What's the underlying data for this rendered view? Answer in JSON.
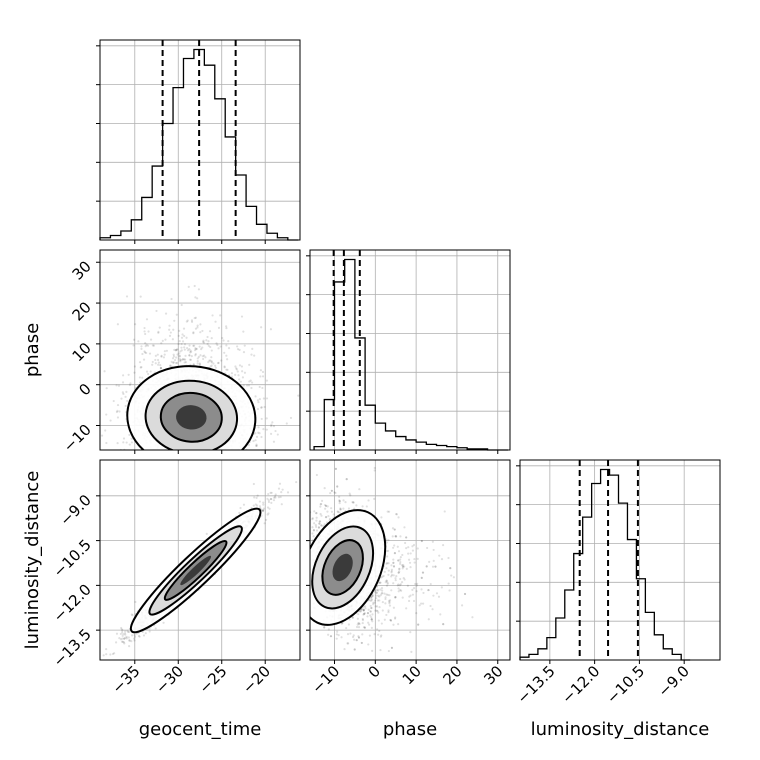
{
  "chart_data": {
    "type": "corner",
    "parameters": [
      "geocent_time",
      "phase",
      "luminosity_distance"
    ],
    "axes": {
      "geocent_time": {
        "range": [
          -39,
          -16
        ],
        "ticks": [
          -35,
          -30,
          -25,
          -20
        ],
        "tick_labels": [
          "−35",
          "−30",
          "−25",
          "−20"
        ]
      },
      "phase": {
        "range": [
          -16,
          33
        ],
        "ticks": [
          -10,
          0,
          10,
          20,
          30
        ],
        "tick_labels": [
          "−10",
          "0",
          "10",
          "20",
          "30"
        ]
      },
      "luminosity_distance": {
        "range": [
          -14.5,
          -7.8
        ],
        "ticks": [
          -13.5,
          -12.0,
          -10.5,
          -9.0
        ],
        "tick_labels": [
          "−13.5",
          "−12.0",
          "−10.5",
          "−9.0"
        ]
      }
    },
    "xlabels": [
      "geocent_time",
      "phase",
      "luminosity_distance"
    ],
    "ylabels": [
      "",
      "phase",
      "luminosity_distance"
    ],
    "histograms": [
      {
        "param": "geocent_time",
        "bins": [
          -39,
          -37.8,
          -36.6,
          -35.4,
          -34.2,
          -33,
          -31.8,
          -30.6,
          -29.4,
          -28.2,
          -27,
          -25.8,
          -24.6,
          -23.4,
          -22.2,
          -21,
          -19.8,
          -18.6,
          -17.4,
          -16.2
        ],
        "counts": [
          1,
          2,
          4,
          9,
          19,
          33,
          52,
          68,
          81,
          85,
          78,
          63,
          46,
          29,
          15,
          7,
          3,
          1,
          0
        ],
        "quantiles": [
          -31.8,
          -27.6,
          -23.4
        ]
      },
      {
        "param": "phase",
        "bins": [
          -15,
          -12.5,
          -10,
          -7.5,
          -5,
          -2.5,
          0,
          2.5,
          5,
          7.5,
          10,
          12.5,
          15,
          17.5,
          20,
          22.5,
          25,
          27.5,
          30,
          32.5
        ],
        "counts": [
          3,
          45,
          150,
          170,
          100,
          40,
          24,
          17,
          12,
          9,
          7,
          5,
          4,
          3,
          2,
          1,
          1,
          0,
          0
        ],
        "quantiles": [
          -10.2,
          -7.7,
          -3.8
        ]
      },
      {
        "param": "luminosity_distance",
        "bins": [
          -14.5,
          -14.2,
          -13.9,
          -13.6,
          -13.3,
          -13.0,
          -12.7,
          -12.4,
          -12.1,
          -11.8,
          -11.5,
          -11.2,
          -10.9,
          -10.6,
          -10.3,
          -10.0,
          -9.7,
          -9.4,
          -9.1,
          -8.8
        ],
        "counts": [
          1,
          2,
          4,
          8,
          15,
          25,
          38,
          51,
          63,
          68,
          66,
          56,
          43,
          29,
          17,
          9,
          4,
          2,
          0
        ],
        "quantiles": [
          -12.5,
          -11.55,
          -10.55
        ]
      }
    ],
    "pairs": [
      {
        "x": "geocent_time",
        "y": "phase",
        "center": [
          -28.5,
          -8
        ],
        "spread": [
          3.5,
          6
        ],
        "correlation": -0.1
      },
      {
        "x": "geocent_time",
        "y": "luminosity_distance",
        "center": [
          -28.0,
          -11.5
        ],
        "spread": [
          3.5,
          1.0
        ],
        "correlation": 0.97
      },
      {
        "x": "phase",
        "y": "luminosity_distance",
        "center": [
          -8,
          -11.4
        ],
        "spread": [
          4,
          1.0
        ],
        "correlation": -0.25
      }
    ],
    "line_color": "#000000",
    "grid": true
  }
}
